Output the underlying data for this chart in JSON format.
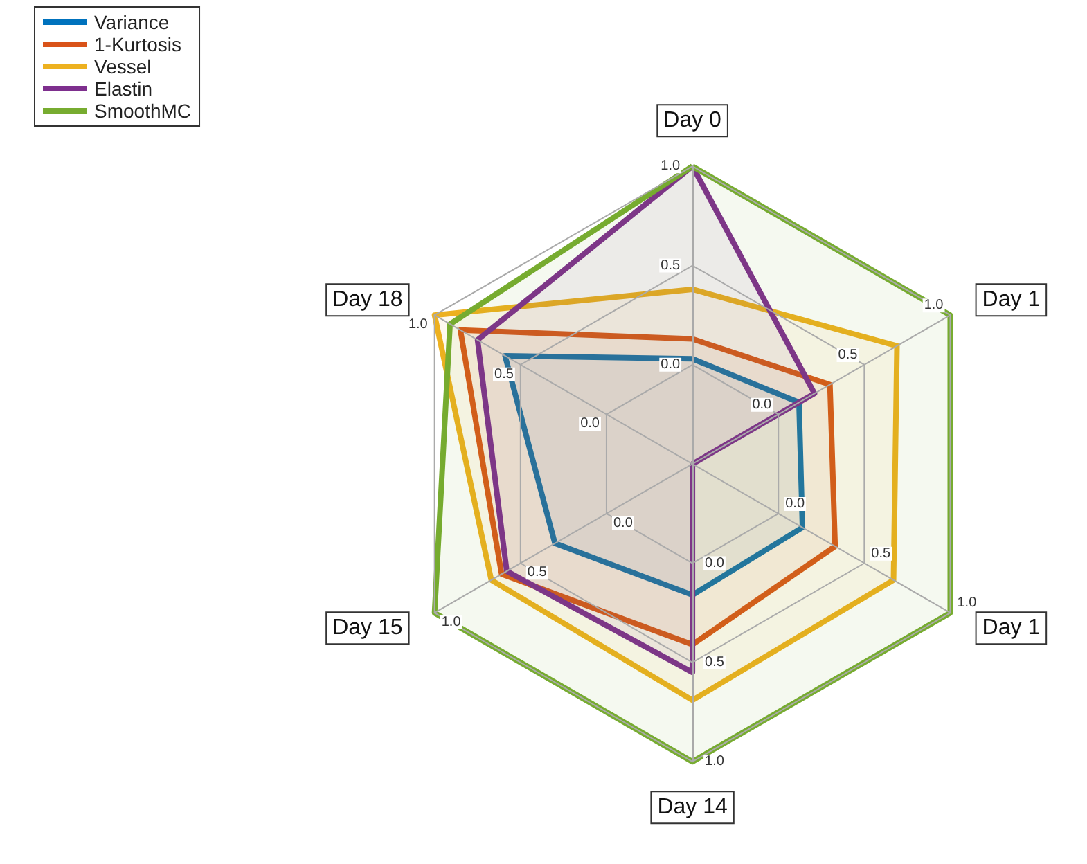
{
  "chart_data": {
    "type": "radar",
    "categories": [
      "Day 0",
      "Day 1",
      "Day 1",
      "Day 14",
      "Day 15",
      "Day 18"
    ],
    "ylim": [
      -0.5,
      1
    ],
    "yticks": [
      {
        "value": 0,
        "label": "0.0"
      },
      {
        "value": 0.5,
        "label": "0.5"
      },
      {
        "value": 1,
        "label": "1.0"
      }
    ],
    "grid": true,
    "legend": "top left",
    "series": [
      {
        "name": "Variance",
        "color": "#0072bd",
        "values": [
          0.03,
          0.12,
          0.14,
          0.16,
          0.3,
          0.59
        ]
      },
      {
        "name": "1-Kurtosis",
        "color": "#d95319",
        "values": [
          0.13,
          0.3,
          0.33,
          0.41,
          0.61,
          0.85
        ]
      },
      {
        "name": "Vessel",
        "color": "#edb120",
        "values": [
          0.38,
          0.69,
          0.67,
          0.69,
          0.67,
          1.0
        ]
      },
      {
        "name": "Elastin",
        "color": "#7e2f8e",
        "values": [
          1.0,
          0.21,
          -0.5,
          0.55,
          0.58,
          0.75
        ]
      },
      {
        "name": "SmoothMC",
        "color": "#77ac30",
        "values": [
          1.0,
          1.0,
          1.0,
          1.0,
          1.0,
          0.91
        ]
      }
    ]
  }
}
